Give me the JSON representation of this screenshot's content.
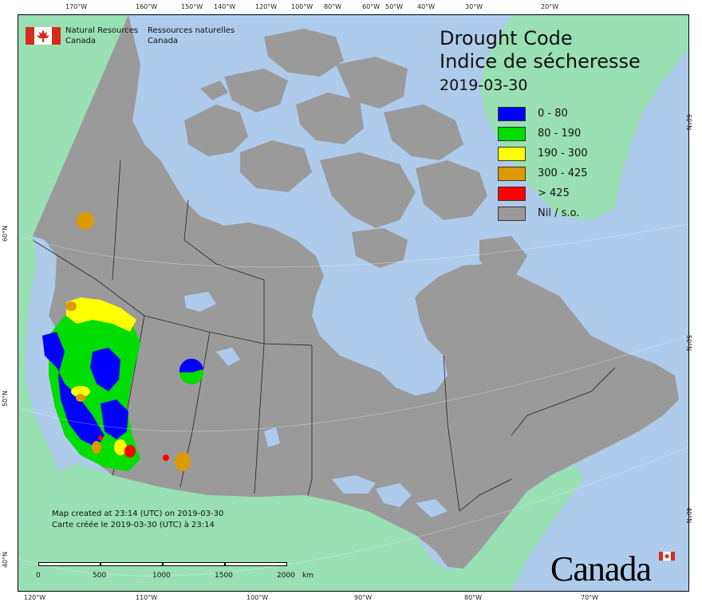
{
  "map": {
    "title_en": "Drought Code",
    "title_fr": "Indice de sécheresse",
    "date": "2019-03-30",
    "agency": {
      "en_line1": "Natural Resources",
      "en_line2": "Canada",
      "fr_line1": "Ressources naturelles",
      "fr_line2": "Canada"
    },
    "legend": [
      {
        "label": "0 - 80",
        "color": "#0000ff"
      },
      {
        "label": "80 - 190",
        "color": "#00dd00"
      },
      {
        "label": "190 - 300",
        "color": "#ffff00"
      },
      {
        "label": "300 - 425",
        "color": "#dd9900"
      },
      {
        "label": "> 425",
        "color": "#ff0000"
      },
      {
        "label": "Nil / s.o.",
        "color": "#9a9a9a"
      }
    ],
    "credit_en": "Map created at 23:14 (UTC) on 2019-03-30",
    "credit_fr": "Carte créée le 2019-03-30 (UTC) à 23:14",
    "scale_labels": [
      "0",
      "500",
      "1000",
      "1500",
      "2000",
      "km"
    ],
    "wordmark": "Canada",
    "lon_ticks_top": [
      "170°W",
      "160°W",
      "150°W",
      "140°W",
      "120°W",
      "100°W",
      "80°W",
      "60°W",
      "50°W",
      "40°W",
      "30°W",
      "20°W"
    ],
    "lon_ticks_bottom": [
      "120°W",
      "110°W",
      "100°W",
      "90°W",
      "80°W",
      "70°W"
    ],
    "lat_ticks_left": [
      "60°N",
      "50°N",
      "40°N"
    ],
    "lat_ticks_right": [
      "60°N",
      "50°N",
      "40°N"
    ],
    "colors": {
      "ocean": "#aecbec",
      "foreign_land": "#99e0b3",
      "canada_land": "#9a9a9a",
      "lakes": "#aecbec"
    }
  }
}
